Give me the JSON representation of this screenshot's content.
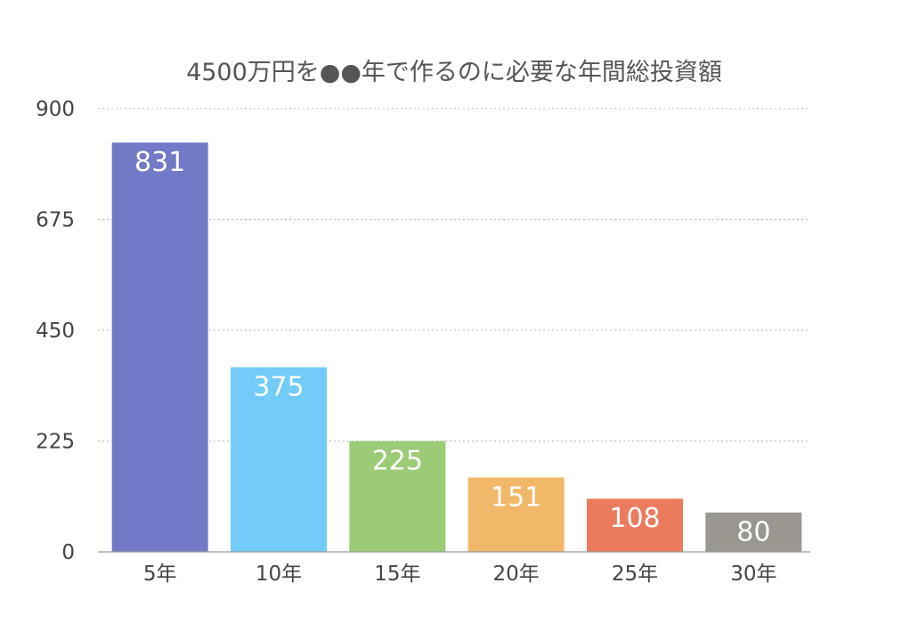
{
  "chart_data": {
    "type": "bar",
    "title": "4500万円を●●年で作るのに必要な年間総投資額",
    "xlabel": "",
    "ylabel": "",
    "categories": [
      "5年",
      "10年",
      "15年",
      "20年",
      "25年",
      "30年"
    ],
    "values": [
      831,
      375,
      225,
      151,
      108,
      80
    ],
    "data_labels": [
      "831",
      "375",
      "225",
      "151",
      "108",
      "80"
    ],
    "colors": [
      "#7279c6",
      "#72cbf8",
      "#9bcb76",
      "#f2b86a",
      "#eb7b5c",
      "#9a9791"
    ],
    "ylim": [
      0,
      900
    ],
    "yticks": [
      0,
      225,
      450,
      675,
      900
    ],
    "ytick_labels": [
      "0",
      "225",
      "450",
      "675",
      "900"
    ],
    "grid": true,
    "legend": "none"
  }
}
